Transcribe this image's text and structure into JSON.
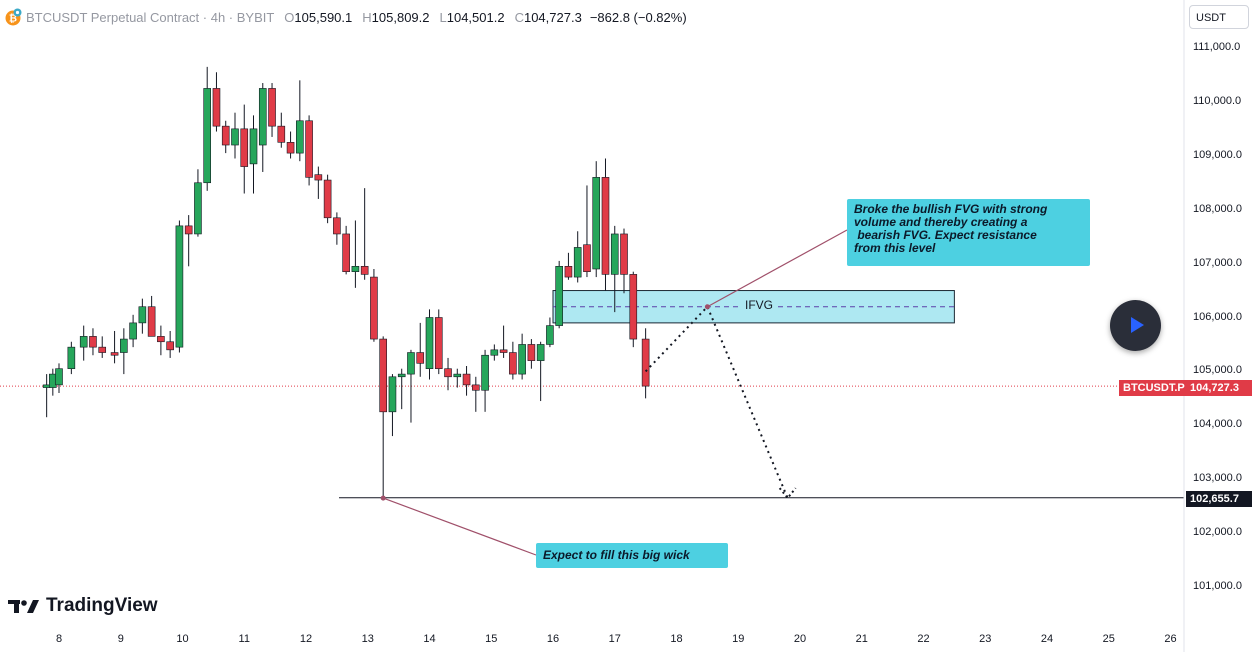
{
  "header": {
    "symbol": "BTCUSDT Perpetual Contract · 4h · BYBIT",
    "open_key": "O",
    "open": "105,590.1",
    "high_key": "H",
    "high": "105,809.2",
    "low_key": "L",
    "low": "104,501.2",
    "close_key": "C",
    "close": "104,727.3",
    "change": "−862.8 (−0.82%)"
  },
  "currency_button": "USDT",
  "price_axis": [
    "111,000.0",
    "110,000.0",
    "109,000.0",
    "108,000.0",
    "107,000.0",
    "106,000.0",
    "105,000.0",
    "104,000.0",
    "103,000.0",
    "102,000.0",
    "101,000.0"
  ],
  "date_axis": [
    "8",
    "9",
    "10",
    "11",
    "12",
    "13",
    "14",
    "15",
    "16",
    "17",
    "18",
    "19",
    "20",
    "21",
    "22",
    "23",
    "24",
    "25",
    "26"
  ],
  "tags": {
    "symbol_tag": "BTCUSDT.P",
    "last_price": "104,727.3",
    "level_price": "102,655.7"
  },
  "annotations": {
    "fvg_label": "IFVG",
    "callout_top": [
      "Broke the bullish FVG with strong",
      "volume and thereby creating a",
      " bearish FVG. Expect resistance",
      "from this level"
    ],
    "callout_bottom": "Expect to fill this big wick"
  },
  "branding": "TradingView",
  "colors": {
    "up": "#26a65b",
    "down": "#e03b47",
    "fvg_fill": "#aee8f2",
    "callout": "#4dd0e1",
    "last_price_tag": "#e03b47"
  },
  "chart_data": {
    "type": "candlestick",
    "timeframe": "4h",
    "ylim": [
      100700,
      111300
    ],
    "candles": [
      {
        "d": "7.8",
        "o": 104700,
        "h": 104950,
        "l": 104150,
        "c": 104750
      },
      {
        "d": "7.9",
        "o": 104700,
        "h": 105050,
        "l": 104550,
        "c": 104950
      },
      {
        "d": "8.0",
        "o": 104750,
        "h": 105150,
        "l": 104600,
        "c": 105050
      },
      {
        "d": "8.2",
        "o": 105050,
        "h": 105550,
        "l": 104950,
        "c": 105450
      },
      {
        "d": "8.4",
        "o": 105450,
        "h": 105850,
        "l": 105200,
        "c": 105650
      },
      {
        "d": "8.55",
        "o": 105650,
        "h": 105800,
        "l": 105300,
        "c": 105450
      },
      {
        "d": "8.7",
        "o": 105450,
        "h": 105650,
        "l": 105250,
        "c": 105350
      },
      {
        "d": "8.9",
        "o": 105350,
        "h": 105750,
        "l": 105150,
        "c": 105300
      },
      {
        "d": "9.05",
        "o": 105350,
        "h": 105800,
        "l": 104950,
        "c": 105600
      },
      {
        "d": "9.2",
        "o": 105600,
        "h": 106050,
        "l": 105450,
        "c": 105900
      },
      {
        "d": "9.35",
        "o": 105900,
        "h": 106350,
        "l": 105700,
        "c": 106200
      },
      {
        "d": "9.5",
        "o": 106200,
        "h": 106400,
        "l": 105700,
        "c": 105650
      },
      {
        "d": "9.65",
        "o": 105650,
        "h": 105850,
        "l": 105300,
        "c": 105550
      },
      {
        "d": "9.8",
        "o": 105550,
        "h": 105750,
        "l": 105250,
        "c": 105400
      },
      {
        "d": "9.95",
        "o": 105450,
        "h": 107800,
        "l": 105350,
        "c": 107700
      },
      {
        "d": "10.1",
        "o": 107700,
        "h": 107900,
        "l": 106950,
        "c": 107550
      },
      {
        "d": "10.25",
        "o": 107550,
        "h": 108750,
        "l": 107500,
        "c": 108500
      },
      {
        "d": "10.4",
        "o": 108500,
        "h": 110650,
        "l": 108350,
        "c": 110250
      },
      {
        "d": "10.55",
        "o": 110250,
        "h": 110550,
        "l": 109450,
        "c": 109550
      },
      {
        "d": "10.7",
        "o": 109550,
        "h": 109650,
        "l": 109050,
        "c": 109200
      },
      {
        "d": "10.85",
        "o": 109200,
        "h": 109800,
        "l": 108950,
        "c": 109500
      },
      {
        "d": "11.0",
        "o": 109500,
        "h": 109950,
        "l": 108300,
        "c": 108800
      },
      {
        "d": "11.15",
        "o": 108850,
        "h": 109750,
        "l": 108300,
        "c": 109500
      },
      {
        "d": "11.3",
        "o": 109200,
        "h": 110350,
        "l": 108700,
        "c": 110250
      },
      {
        "d": "11.45",
        "o": 110250,
        "h": 110350,
        "l": 109350,
        "c": 109550
      },
      {
        "d": "11.6",
        "o": 109550,
        "h": 109800,
        "l": 109150,
        "c": 109250
      },
      {
        "d": "11.75",
        "o": 109250,
        "h": 109450,
        "l": 108950,
        "c": 109050
      },
      {
        "d": "11.9",
        "o": 109050,
        "h": 110400,
        "l": 108900,
        "c": 109650
      },
      {
        "d": "12.05",
        "o": 109650,
        "h": 109750,
        "l": 108450,
        "c": 108600
      },
      {
        "d": "12.2",
        "o": 108650,
        "h": 108800,
        "l": 108200,
        "c": 108550
      },
      {
        "d": "12.35",
        "o": 108550,
        "h": 108650,
        "l": 107750,
        "c": 107850
      },
      {
        "d": "12.5",
        "o": 107850,
        "h": 107950,
        "l": 107350,
        "c": 107550
      },
      {
        "d": "12.65",
        "o": 107550,
        "h": 107700,
        "l": 106800,
        "c": 106850
      },
      {
        "d": "12.8",
        "o": 106850,
        "h": 107800,
        "l": 106550,
        "c": 106950
      },
      {
        "d": "12.95",
        "o": 106950,
        "h": 108400,
        "l": 106700,
        "c": 106800
      },
      {
        "d": "13.1",
        "o": 106750,
        "h": 106900,
        "l": 105550,
        "c": 105600
      },
      {
        "d": "13.25",
        "o": 105600,
        "h": 105650,
        "l": 102650,
        "c": 104250
      },
      {
        "d": "13.4",
        "o": 104250,
        "h": 104950,
        "l": 103800,
        "c": 104900
      },
      {
        "d": "13.55",
        "o": 104900,
        "h": 105050,
        "l": 104300,
        "c": 104950
      },
      {
        "d": "13.7",
        "o": 104950,
        "h": 105400,
        "l": 104050,
        "c": 105350
      },
      {
        "d": "13.85",
        "o": 105350,
        "h": 105900,
        "l": 104900,
        "c": 105150
      },
      {
        "d": "14.0",
        "o": 105050,
        "h": 106150,
        "l": 104850,
        "c": 106000
      },
      {
        "d": "14.15",
        "o": 106000,
        "h": 106150,
        "l": 104950,
        "c": 105050
      },
      {
        "d": "14.3",
        "o": 105050,
        "h": 105250,
        "l": 104650,
        "c": 104900
      },
      {
        "d": "14.45",
        "o": 104900,
        "h": 105050,
        "l": 104700,
        "c": 104950
      },
      {
        "d": "14.6",
        "o": 104950,
        "h": 105100,
        "l": 104550,
        "c": 104750
      },
      {
        "d": "14.75",
        "o": 104750,
        "h": 104900,
        "l": 104250,
        "c": 104650
      },
      {
        "d": "14.9",
        "o": 104650,
        "h": 105400,
        "l": 104250,
        "c": 105300
      },
      {
        "d": "15.05",
        "o": 105300,
        "h": 105500,
        "l": 105200,
        "c": 105400
      },
      {
        "d": "15.2",
        "o": 105400,
        "h": 105850,
        "l": 105250,
        "c": 105350
      },
      {
        "d": "15.35",
        "o": 105350,
        "h": 105550,
        "l": 104850,
        "c": 104950
      },
      {
        "d": "15.5",
        "o": 104950,
        "h": 105700,
        "l": 104850,
        "c": 105500
      },
      {
        "d": "15.65",
        "o": 105500,
        "h": 105600,
        "l": 105050,
        "c": 105200
      },
      {
        "d": "15.8",
        "o": 105200,
        "h": 105550,
        "l": 104450,
        "c": 105500
      },
      {
        "d": "15.95",
        "o": 105500,
        "h": 106000,
        "l": 105450,
        "c": 105850
      },
      {
        "d": "16.1",
        "o": 105850,
        "h": 107050,
        "l": 105800,
        "c": 106950
      },
      {
        "d": "16.25",
        "o": 106950,
        "h": 107200,
        "l": 106700,
        "c": 106750
      },
      {
        "d": "16.4",
        "o": 106750,
        "h": 107600,
        "l": 106650,
        "c": 107300
      },
      {
        "d": "16.55",
        "o": 107350,
        "h": 108450,
        "l": 106750,
        "c": 106850
      },
      {
        "d": "16.7",
        "o": 106900,
        "h": 108900,
        "l": 106750,
        "c": 108600
      },
      {
        "d": "16.85",
        "o": 108600,
        "h": 108950,
        "l": 106500,
        "c": 106800
      },
      {
        "d": "17.0",
        "o": 106800,
        "h": 107700,
        "l": 106100,
        "c": 107550
      },
      {
        "d": "17.15",
        "o": 107550,
        "h": 107650,
        "l": 106450,
        "c": 106800
      },
      {
        "d": "17.3",
        "o": 106800,
        "h": 106850,
        "l": 105450,
        "c": 105600
      },
      {
        "d": "17.5",
        "o": 105600,
        "h": 105800,
        "l": 104500,
        "c": 104727.3
      }
    ],
    "horizontal_level": 102655.7,
    "last_price": 104727.3,
    "fvg_zone": {
      "from_day": 16.0,
      "to_day": 22.5,
      "low": 105900,
      "high": 106500,
      "label": "IFVG"
    },
    "projection": [
      {
        "d": 17.5,
        "p": 105000
      },
      {
        "d": 18.5,
        "p": 106200
      },
      {
        "d": 19.8,
        "p": 102650
      }
    ]
  }
}
